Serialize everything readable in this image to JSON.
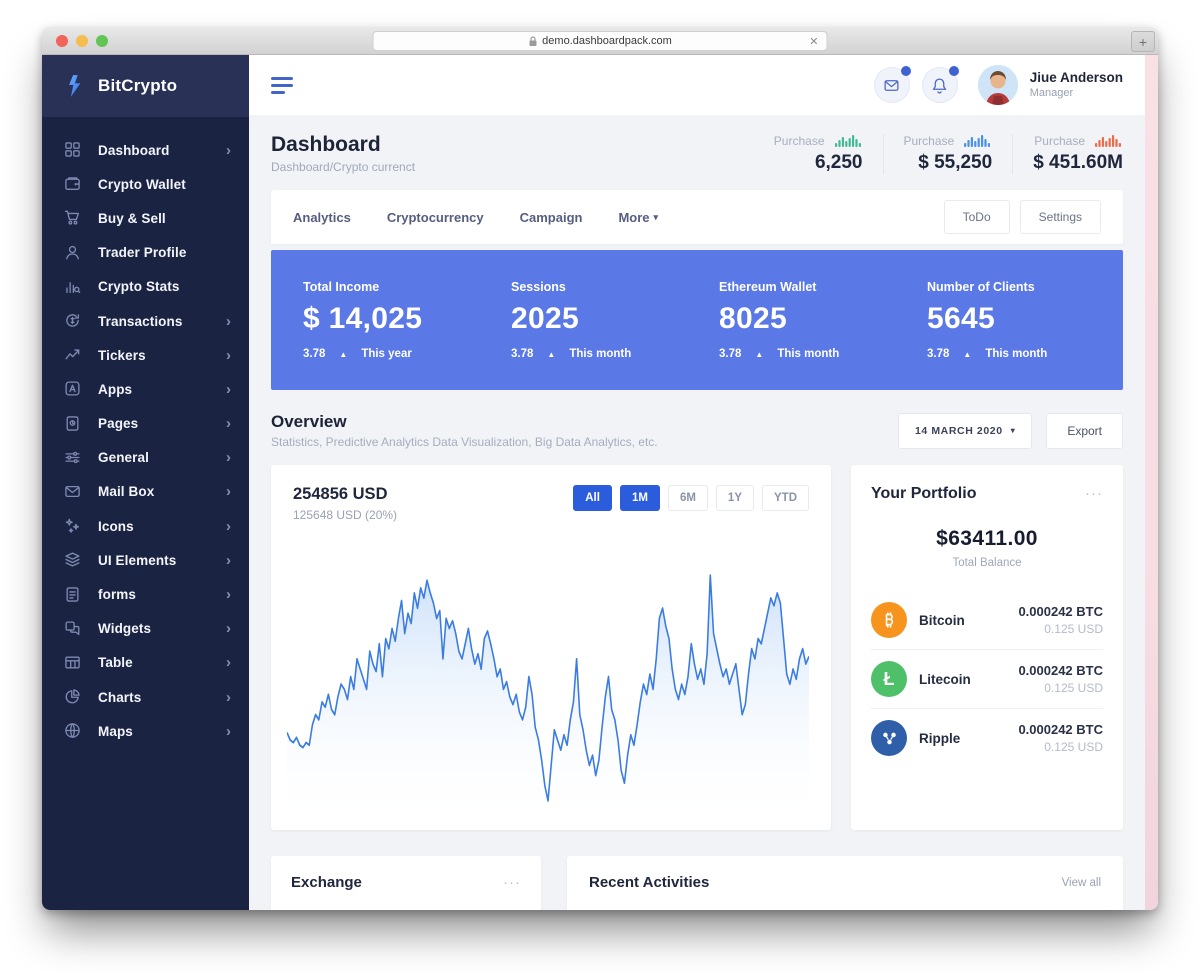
{
  "browser": {
    "url": "demo.dashboardpack.com",
    "close_glyph": "✕",
    "newtab_glyph": "+"
  },
  "glyphs": {
    "dots": "···",
    "caret_down": "▾",
    "up_triangle": "▲",
    "chevron_right": "›"
  },
  "colors": {
    "sidebar_bg": "#1b2342",
    "banner_blue": "#5a78e6",
    "accent_blue": "#2b5cdc",
    "stat_green": "#43b995",
    "stat_blue": "#4a8fe8",
    "stat_orange": "#ef6a47",
    "pink_strip": "#f8dee4"
  },
  "sidebar": {
    "brand": "BitCrypto",
    "items": [
      {
        "label": "Dashboard",
        "icon": "grid-icon",
        "chevron": true
      },
      {
        "label": "Crypto Wallet",
        "icon": "wallet-icon",
        "chevron": false
      },
      {
        "label": "Buy & Sell",
        "icon": "cart-icon",
        "chevron": false
      },
      {
        "label": "Trader Profile",
        "icon": "user-icon",
        "chevron": false
      },
      {
        "label": "Crypto Stats",
        "icon": "stats-icon",
        "chevron": false
      },
      {
        "label": "Transactions",
        "icon": "transactions-icon",
        "chevron": true
      },
      {
        "label": "Tickers",
        "icon": "trending-icon",
        "chevron": true
      },
      {
        "label": "Apps",
        "icon": "appstore-icon",
        "chevron": true
      },
      {
        "label": "Pages",
        "icon": "page-icon",
        "chevron": true
      },
      {
        "label": "General",
        "icon": "sliders-icon",
        "chevron": true
      },
      {
        "label": "Mail Box",
        "icon": "mail-icon",
        "chevron": true
      },
      {
        "label": "Icons",
        "icon": "sparkles-icon",
        "chevron": true
      },
      {
        "label": "UI Elements",
        "icon": "layers-icon",
        "chevron": true
      },
      {
        "label": "forms",
        "icon": "form-icon",
        "chevron": true
      },
      {
        "label": "Widgets",
        "icon": "widget-icon",
        "chevron": true
      },
      {
        "label": "Table",
        "icon": "table-icon",
        "chevron": true
      },
      {
        "label": "Charts",
        "icon": "chart-icon",
        "chevron": true
      },
      {
        "label": "Maps",
        "icon": "globe-icon",
        "chevron": true
      }
    ]
  },
  "header": {
    "user_name": "Jiue Anderson",
    "user_role": "Manager"
  },
  "page": {
    "title": "Dashboard",
    "breadcrumb": "Dashboard/Crypto currenct"
  },
  "purchase_stats": [
    {
      "label": "Purchase",
      "value": "6,250",
      "bar_color": "#43b995"
    },
    {
      "label": "Purchase",
      "value": "$ 55,250",
      "bar_color": "#4a8fe8"
    },
    {
      "label": "Purchase",
      "value": "$ 451.60M",
      "bar_color": "#ef6a47"
    }
  ],
  "tabs": {
    "items": [
      "Analytics",
      "Cryptocurrency",
      "Campaign"
    ],
    "more_label": "More",
    "buttons": [
      "ToDo",
      "Settings"
    ]
  },
  "banner_stats": [
    {
      "label": "Total Income",
      "value": "$ 14,025",
      "change": "3.78",
      "period": "This year"
    },
    {
      "label": "Sessions",
      "value": "2025",
      "change": "3.78",
      "period": "This month"
    },
    {
      "label": "Ethereum Wallet",
      "value": "8025",
      "change": "3.78",
      "period": "This month"
    },
    {
      "label": "Number of Clients",
      "value": "5645",
      "change": "3.78",
      "period": "This month"
    }
  ],
  "overview": {
    "title": "Overview",
    "subtitle": "Statistics, Predictive Analytics Data Visualization, Big Data Analytics, etc.",
    "date_selector": "14 MARCH 2020",
    "export_label": "Export"
  },
  "chart_card": {
    "value": "254856 USD",
    "sub": "125648 USD (20%)",
    "ranges": [
      {
        "label": "All",
        "active": true
      },
      {
        "label": "1M",
        "active": true
      },
      {
        "label": "6M",
        "active": false
      },
      {
        "label": "1Y",
        "active": false
      },
      {
        "label": "YTD",
        "active": false
      }
    ]
  },
  "chart_data": {
    "type": "area",
    "title": "254856 USD price overview",
    "xlabel": "",
    "ylabel": "",
    "ylim": [
      0,
      100
    ],
    "grid": false,
    "legend": false,
    "line_color": "#3b7ce2",
    "fill_top": "#c3dbf8",
    "values": [
      33,
      30,
      29,
      31,
      28,
      27,
      29,
      28,
      36,
      40,
      38,
      45,
      43,
      48,
      42,
      40,
      47,
      52,
      50,
      46,
      55,
      50,
      62,
      58,
      54,
      50,
      65,
      60,
      57,
      68,
      55,
      70,
      66,
      74,
      69,
      78,
      85,
      72,
      80,
      76,
      88,
      82,
      90,
      86,
      93,
      88,
      84,
      78,
      81,
      62,
      78,
      74,
      77,
      72,
      65,
      62,
      68,
      74,
      66,
      60,
      64,
      58,
      70,
      73,
      68,
      62,
      55,
      58,
      50,
      53,
      47,
      44,
      48,
      41,
      38,
      43,
      55,
      48,
      35,
      30,
      22,
      12,
      6,
      20,
      34,
      30,
      26,
      32,
      28,
      38,
      45,
      62,
      40,
      34,
      26,
      20,
      24,
      16,
      22,
      35,
      47,
      55,
      42,
      38,
      30,
      18,
      13,
      24,
      32,
      28,
      36,
      45,
      52,
      48,
      56,
      50,
      62,
      78,
      82,
      75,
      70,
      58,
      50,
      46,
      52,
      48,
      55,
      68,
      60,
      54,
      58,
      52,
      64,
      95,
      72,
      66,
      60,
      55,
      58,
      52,
      56,
      60,
      50,
      40,
      44,
      56,
      66,
      62,
      70,
      68,
      74,
      80,
      86,
      83,
      88,
      84,
      70,
      56,
      52,
      58,
      54,
      62,
      66,
      60,
      63
    ]
  },
  "portfolio": {
    "title": "Your Portfolio",
    "balance": "$63411.00",
    "balance_label": "Total Balance",
    "assets": [
      {
        "name": "Bitcoin",
        "icon": "bitcoin-icon",
        "color": "#f7941e",
        "amount": "0.000242 BTC",
        "usd": "0.125 USD"
      },
      {
        "name": "Litecoin",
        "icon": "litecoin-icon",
        "color": "#4fc06a",
        "amount": "0.000242 BTC",
        "usd": "0.125 USD"
      },
      {
        "name": "Ripple",
        "icon": "ripple-icon",
        "color": "#2f5fa8",
        "amount": "0.000242 BTC",
        "usd": "0.125 USD"
      }
    ]
  },
  "bottom": {
    "exchange_title": "Exchange",
    "recent_title": "Recent Activities",
    "view_all": "View all"
  }
}
